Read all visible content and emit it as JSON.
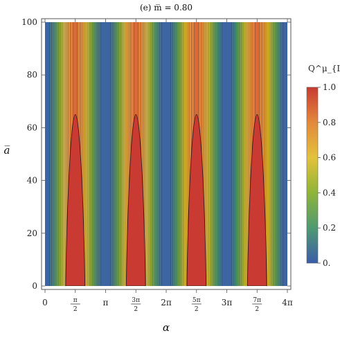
{
  "chart_data": {
    "type": "heatmap",
    "title": "(e)    m̅ = 0.80",
    "xlabel": "α",
    "ylabel": "a̅",
    "xlim": [
      0,
      12.566
    ],
    "ylim": [
      0,
      100
    ],
    "x_ticks": [
      {
        "value": 0,
        "label": "0"
      },
      {
        "value": 1.5708,
        "num": "π",
        "den": "2"
      },
      {
        "value": 3.1416,
        "label": "π"
      },
      {
        "value": 4.7124,
        "num": "3π",
        "den": "2"
      },
      {
        "value": 6.2832,
        "label": "2π"
      },
      {
        "value": 7.854,
        "num": "5π",
        "den": "2"
      },
      {
        "value": 9.4248,
        "label": "3π"
      },
      {
        "value": 10.9956,
        "num": "7π",
        "den": "2"
      },
      {
        "value": 12.566,
        "label": "4π"
      }
    ],
    "y_ticks": [
      {
        "value": 0,
        "label": "0"
      },
      {
        "value": 20,
        "label": "20"
      },
      {
        "value": 40,
        "label": "40"
      },
      {
        "value": 60,
        "label": "60"
      },
      {
        "value": 80,
        "label": "80"
      },
      {
        "value": 100,
        "label": "100"
      }
    ],
    "colorbar": {
      "label": "Q^μ_{I,m̅}",
      "range": [
        0,
        1
      ],
      "ticks": [
        {
          "value": 0,
          "label": "0."
        },
        {
          "value": 0.2,
          "label": "0.2"
        },
        {
          "value": 0.4,
          "label": "0.4"
        },
        {
          "value": 0.6,
          "label": "0.6"
        },
        {
          "value": 0.8,
          "label": "0.8"
        },
        {
          "value": 1.0,
          "label": "1.0"
        }
      ],
      "colors": [
        "#3a5da8",
        "#4f9a72",
        "#8fb43a",
        "#e3c23a",
        "#e2893d",
        "#c83a32"
      ]
    },
    "contour_levels": 20,
    "peak_regions": {
      "x_centers": [
        1.5708,
        4.7124,
        7.854,
        10.9956
      ],
      "top_a": 65
    }
  }
}
